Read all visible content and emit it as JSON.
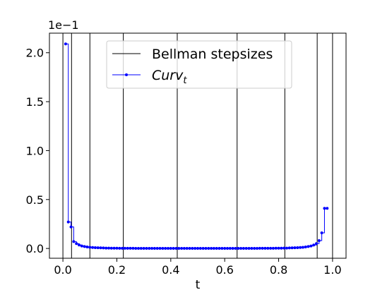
{
  "chart_data": {
    "type": "line",
    "xlabel": "t",
    "ylabel": "",
    "y_offset_label": "1e−1",
    "xlim": [
      -0.05,
      1.05
    ],
    "ylim": [
      -0.1,
      2.2
    ],
    "x_ticks": [
      0.0,
      0.2,
      0.4,
      0.6,
      0.8,
      1.0
    ],
    "x_tick_labels": [
      "0.0",
      "0.2",
      "0.4",
      "0.6",
      "0.8",
      "1.0"
    ],
    "y_ticks": [
      0.0,
      0.5,
      1.0,
      1.5,
      2.0
    ],
    "y_tick_labels": [
      "0.0",
      "0.5",
      "1.0",
      "1.5",
      "2.0"
    ],
    "grid": false,
    "legend": {
      "position": "top-center",
      "entries": [
        {
          "name": "Bellman stepsizes",
          "color": "#000000",
          "style": "line"
        },
        {
          "name": "Curv",
          "subscript": "t",
          "italic": true,
          "color": "#0000ff",
          "style": "line-marker"
        }
      ]
    },
    "series": [
      {
        "name": "Bellman stepsizes",
        "kind": "vertical-lines",
        "color": "#000000",
        "x": [
          0.0,
          0.032,
          0.1,
          0.224,
          0.424,
          0.646,
          0.823,
          0.943,
          1.0
        ]
      },
      {
        "name": "Curv_t",
        "kind": "step-markers",
        "color": "#0000ff",
        "x": [
          0.01,
          0.02,
          0.03,
          0.04,
          0.05,
          0.06,
          0.07,
          0.08,
          0.09,
          0.1,
          0.11,
          0.12,
          0.13,
          0.14,
          0.15,
          0.16,
          0.17,
          0.18,
          0.19,
          0.2,
          0.21,
          0.22,
          0.23,
          0.24,
          0.25,
          0.26,
          0.27,
          0.28,
          0.29,
          0.3,
          0.31,
          0.32,
          0.33,
          0.34,
          0.35,
          0.36,
          0.37,
          0.38,
          0.39,
          0.4,
          0.41,
          0.42,
          0.43,
          0.44,
          0.45,
          0.46,
          0.47,
          0.48,
          0.49,
          0.5,
          0.51,
          0.52,
          0.53,
          0.54,
          0.55,
          0.56,
          0.57,
          0.58,
          0.59,
          0.6,
          0.61,
          0.62,
          0.63,
          0.64,
          0.65,
          0.66,
          0.67,
          0.68,
          0.69,
          0.7,
          0.71,
          0.72,
          0.73,
          0.74,
          0.75,
          0.76,
          0.77,
          0.78,
          0.79,
          0.8,
          0.81,
          0.82,
          0.83,
          0.84,
          0.85,
          0.86,
          0.87,
          0.88,
          0.89,
          0.9,
          0.91,
          0.92,
          0.93,
          0.94,
          0.95,
          0.96,
          0.97,
          0.98
        ],
        "y": [
          2.09,
          0.27,
          0.22,
          0.07,
          0.05,
          0.035,
          0.025,
          0.02,
          0.015,
          0.012,
          0.01,
          0.008,
          0.007,
          0.006,
          0.005,
          0.004,
          0.004,
          0.003,
          0.003,
          0.003,
          0.002,
          0.002,
          0.002,
          0.002,
          0.002,
          0.002,
          0.001,
          0.001,
          0.001,
          0.001,
          0.001,
          0.001,
          0.001,
          0.001,
          0.001,
          0.001,
          0.001,
          0.001,
          0.001,
          0.001,
          0.001,
          0.001,
          0.001,
          0.001,
          0.001,
          0.001,
          0.001,
          0.001,
          0.001,
          0.001,
          0.001,
          0.001,
          0.001,
          0.001,
          0.001,
          0.001,
          0.001,
          0.001,
          0.001,
          0.001,
          0.001,
          0.001,
          0.001,
          0.001,
          0.001,
          0.001,
          0.001,
          0.001,
          0.001,
          0.001,
          0.001,
          0.001,
          0.002,
          0.002,
          0.002,
          0.002,
          0.002,
          0.002,
          0.003,
          0.003,
          0.003,
          0.004,
          0.004,
          0.005,
          0.006,
          0.007,
          0.008,
          0.01,
          0.012,
          0.015,
          0.02,
          0.025,
          0.035,
          0.05,
          0.08,
          0.16,
          0.41,
          0.41
        ]
      }
    ]
  }
}
